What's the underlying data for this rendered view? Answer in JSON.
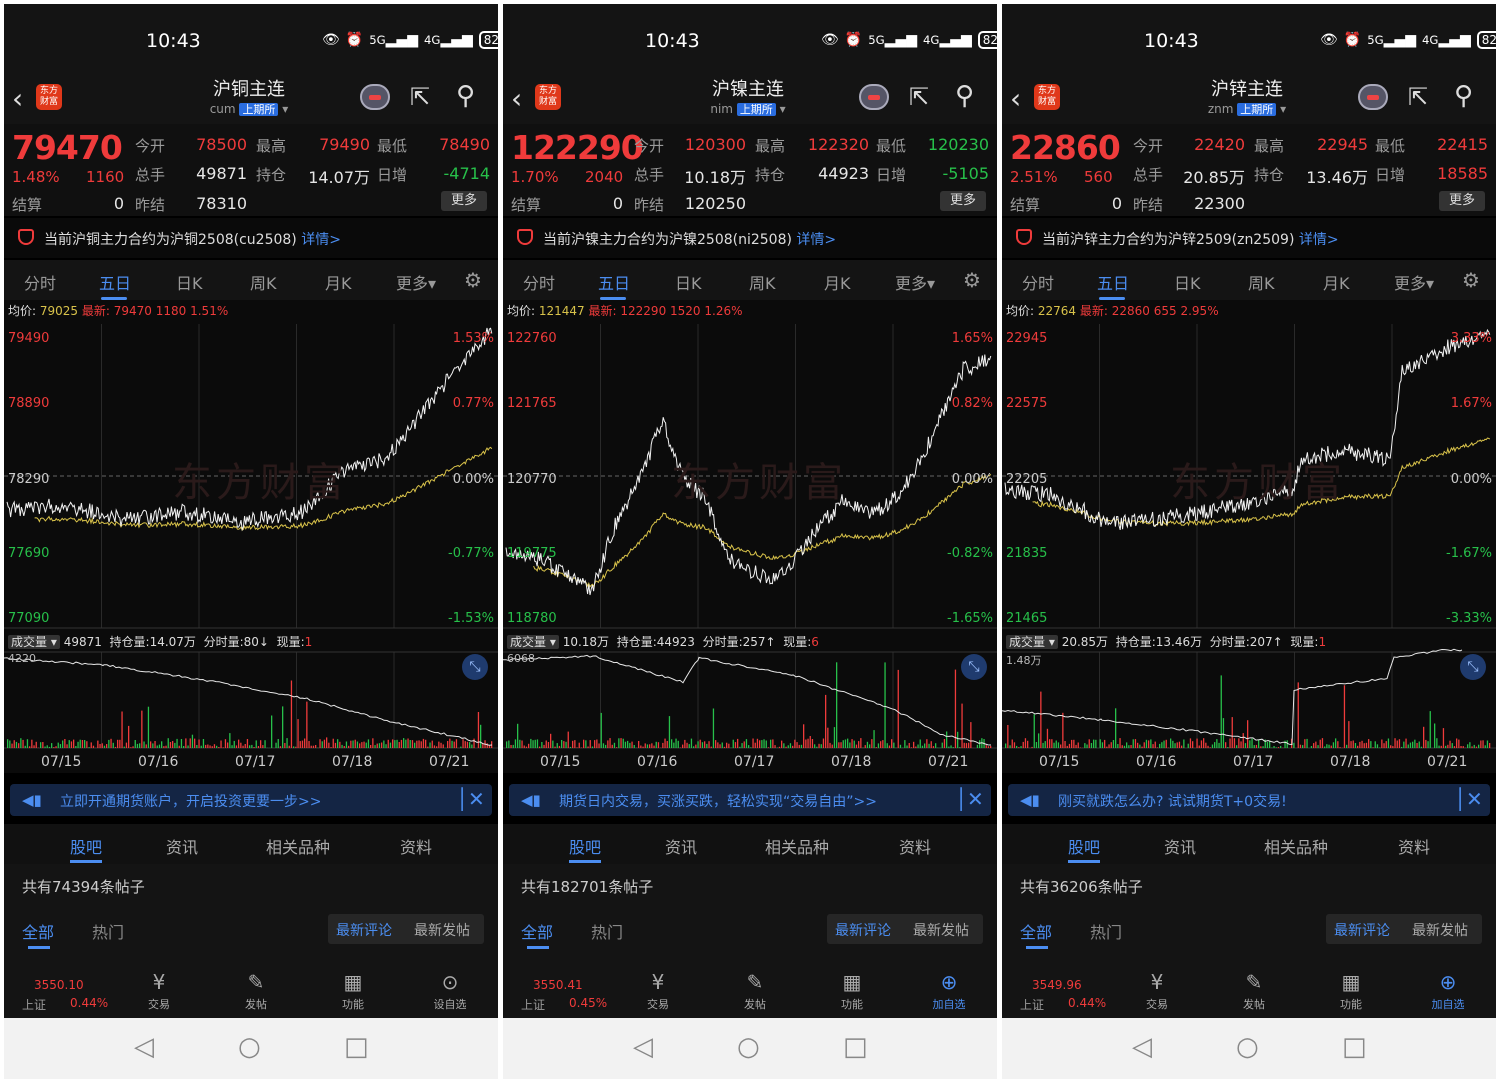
{
  "common": {
    "time": "10:43",
    "battery": "82",
    "signal_5g": "5G",
    "signal_4g": "4G",
    "exchange_tag": "上期所",
    "logo_text": "东方财富",
    "labels": {
      "open": "今开",
      "high": "最高",
      "low": "最低",
      "volume": "总手",
      "oi": "持仓",
      "daily_inc": "日增",
      "settle": "结算",
      "prev_settle": "昨结"
    },
    "more_btn": "更多",
    "detail_link": "详情>",
    "tabs": [
      "分时",
      "五日",
      "日K",
      "周K",
      "月K",
      "更多▾"
    ],
    "avg_label": "均价:",
    "latest_label": "最新:",
    "watermark": "东方财富",
    "vol_label": "成交量",
    "oi_label": "持仓量:",
    "tick_label": "分时量:",
    "cur_label": "现量:",
    "dates": [
      "07/15",
      "07/16",
      "07/17",
      "07/18",
      "07/21"
    ],
    "bottom_tabs": [
      "股吧",
      "资讯",
      "相关品种",
      "资料"
    ],
    "filter_tabs": [
      "全部",
      "热门"
    ],
    "sort_buttons": [
      "最新评论",
      "最新发帖"
    ],
    "nav": {
      "index_name": "上证",
      "trade": "交易",
      "post": "发帖",
      "func": "功能"
    }
  },
  "panels": [
    {
      "title": "沪铜主连",
      "code": "cum",
      "price": "79470",
      "pct": "1.48%",
      "change": "1160",
      "open": "78500",
      "high": "79490",
      "low": "78490",
      "volume": "49871",
      "oi": "14.07万",
      "daily_inc": "-4714",
      "settle": "0",
      "prev_settle": "78310",
      "notice": "当前沪铜主力合约为沪铜2508(cu2508)",
      "avg": "79025",
      "latest": "79470  1180  1.51%",
      "y_left": [
        "79490",
        "78890",
        "78290",
        "77690",
        "77090"
      ],
      "y_right": [
        "1.53%",
        "0.77%",
        "0.00%",
        "-0.77%",
        "-1.53%"
      ],
      "vol": "49871",
      "oi_val": "14.07万",
      "tick": "80↓",
      "cur": "1",
      "vol_max": "4220",
      "banner": "立即开通期货账户，开启投资更要一步>>",
      "post_count": "共有74394条帖子",
      "index_value": "3550.10",
      "index_pct": "0.44%",
      "last_nav": "设自选"
    },
    {
      "title": "沪镍主连",
      "code": "nim",
      "price": "122290",
      "pct": "1.70%",
      "change": "2040",
      "open": "120300",
      "high": "122320",
      "low": "120230",
      "volume": "10.18万",
      "oi": "44923",
      "daily_inc": "-5105",
      "settle": "0",
      "prev_settle": "120250",
      "notice": "当前沪镍主力合约为沪镍2508(ni2508)",
      "avg": "121447",
      "latest": "122290  1520  1.26%",
      "y_left": [
        "122760",
        "121765",
        "120770",
        "119775",
        "118780"
      ],
      "y_right": [
        "1.65%",
        "0.82%",
        "0.00%",
        "-0.82%",
        "-1.65%"
      ],
      "vol": "10.18万",
      "oi_val": "44923",
      "tick": "257↑",
      "cur": "6",
      "vol_max": "6068",
      "banner": "期货日内交易，买涨买跌，轻松实现“交易自由”>>",
      "post_count": "共有182701条帖子",
      "index_value": "3550.41",
      "index_pct": "0.45%",
      "last_nav": "加自选"
    },
    {
      "title": "沪锌主连",
      "code": "znm",
      "price": "22860",
      "pct": "2.51%",
      "change": "560",
      "open": "22420",
      "high": "22945",
      "low": "22415",
      "volume": "20.85万",
      "oi": "13.46万",
      "daily_inc": "18585",
      "settle": "0",
      "prev_settle": "22300",
      "notice": "当前沪锌主力合约为沪锌2509(zn2509)",
      "avg": "22764",
      "latest": "22860  655  2.95%",
      "y_left": [
        "22945",
        "22575",
        "22205",
        "21835",
        "21465"
      ],
      "y_right": [
        "3.33%",
        "1.67%",
        "0.00%",
        "-1.67%",
        "-3.33%"
      ],
      "vol": "20.85万",
      "oi_val": "13.46万",
      "tick": "207↑",
      "cur": "1",
      "vol_max": "1.48万",
      "banner": "刚买就跌怎么办? 试试期货T+0交易!",
      "post_count": "共有36206条帖子",
      "index_value": "3549.96",
      "index_pct": "0.44%",
      "last_nav": "加自选"
    }
  ],
  "colors": {
    "up": "#ef3b3b",
    "down": "#27c04a",
    "accent": "#4b8df0",
    "avg_line": "#d8c24a",
    "price_line": "#f2f2f2"
  }
}
